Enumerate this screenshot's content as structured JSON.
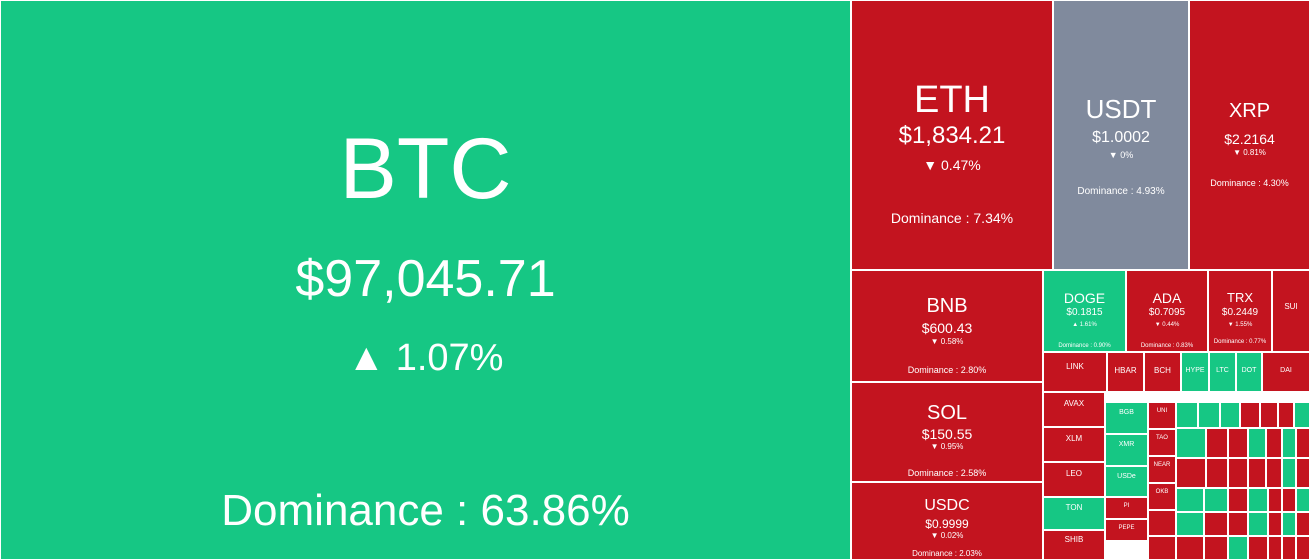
{
  "colors": {
    "up": "#16c784",
    "down": "#c3141f",
    "flat": "#808a9d",
    "text": "#ffffff"
  },
  "chart_data": {
    "type": "treemap",
    "size_metric": "Dominance",
    "coins": [
      {
        "symbol": "BTC",
        "price": "$97,045.71",
        "direction": "up",
        "change": "1.07%",
        "dominance": "Dominance : 63.86%"
      },
      {
        "symbol": "ETH",
        "price": "$1,834.21",
        "direction": "down",
        "change": "0.47%",
        "dominance": "Dominance : 7.34%"
      },
      {
        "symbol": "USDT",
        "price": "$1.0002",
        "direction": "flat",
        "change": "0%",
        "dominance": "Dominance : 4.93%"
      },
      {
        "symbol": "XRP",
        "price": "$2.2164",
        "direction": "down",
        "change": "0.81%",
        "dominance": "Dominance : 4.30%"
      },
      {
        "symbol": "BNB",
        "price": "$600.43",
        "direction": "down",
        "change": "0.58%",
        "dominance": "Dominance : 2.80%"
      },
      {
        "symbol": "SOL",
        "price": "$150.55",
        "direction": "down",
        "change": "0.95%",
        "dominance": "Dominance : 2.58%"
      },
      {
        "symbol": "USDC",
        "price": "$0.9999",
        "direction": "down",
        "change": "0.02%",
        "dominance": "Dominance : 2.03%"
      },
      {
        "symbol": "DOGE",
        "price": "$0.1815",
        "direction": "up",
        "change": "1.61%",
        "dominance": "Dominance : 0.90%"
      },
      {
        "symbol": "ADA",
        "price": "$0.7095",
        "direction": "down",
        "change": "0.44%",
        "dominance": "Dominance : 0.83%"
      },
      {
        "symbol": "TRX",
        "price": "$0.2449",
        "direction": "down",
        "change": "1.55%",
        "dominance": "Dominance : 0.77%"
      },
      {
        "symbol": "SUI",
        "price": "",
        "direction": "down",
        "change": "",
        "dominance": ""
      },
      {
        "symbol": "LINK",
        "price": "",
        "direction": "down",
        "change": "",
        "dominance": ""
      },
      {
        "symbol": "HBAR",
        "price": "",
        "direction": "down",
        "change": "",
        "dominance": ""
      },
      {
        "symbol": "BCH",
        "price": "",
        "direction": "down",
        "change": "",
        "dominance": ""
      },
      {
        "symbol": "HYPE",
        "price": "",
        "direction": "up",
        "change": "",
        "dominance": ""
      },
      {
        "symbol": "LTC",
        "price": "",
        "direction": "up",
        "change": "",
        "dominance": ""
      },
      {
        "symbol": "DOT",
        "price": "",
        "direction": "up",
        "change": "",
        "dominance": ""
      },
      {
        "symbol": "DAI",
        "price": "",
        "direction": "down",
        "change": "",
        "dominance": ""
      },
      {
        "symbol": "AVAX",
        "price": "",
        "direction": "down",
        "change": "",
        "dominance": ""
      },
      {
        "symbol": "XLM",
        "price": "",
        "direction": "down",
        "change": "",
        "dominance": ""
      },
      {
        "symbol": "LEO",
        "price": "",
        "direction": "down",
        "change": "",
        "dominance": ""
      },
      {
        "symbol": "TON",
        "price": "",
        "direction": "up",
        "change": "",
        "dominance": ""
      },
      {
        "symbol": "SHIB",
        "price": "",
        "direction": "down",
        "change": "",
        "dominance": ""
      },
      {
        "symbol": "BGB",
        "price": "",
        "direction": "up",
        "change": "",
        "dominance": ""
      },
      {
        "symbol": "XMR",
        "price": "",
        "direction": "up",
        "change": "",
        "dominance": ""
      },
      {
        "symbol": "USDe",
        "price": "",
        "direction": "up",
        "change": "",
        "dominance": ""
      },
      {
        "symbol": "PI",
        "price": "",
        "direction": "down",
        "change": "",
        "dominance": ""
      },
      {
        "symbol": "PEPE",
        "price": "",
        "direction": "down",
        "change": "",
        "dominance": ""
      },
      {
        "symbol": "UNI",
        "price": "",
        "direction": "down",
        "change": "",
        "dominance": ""
      },
      {
        "symbol": "TAO",
        "price": "",
        "direction": "down",
        "change": "",
        "dominance": ""
      },
      {
        "symbol": "NEAR",
        "price": "",
        "direction": "down",
        "change": "",
        "dominance": ""
      },
      {
        "symbol": "OKB",
        "price": "",
        "direction": "down",
        "change": "",
        "dominance": ""
      }
    ]
  }
}
